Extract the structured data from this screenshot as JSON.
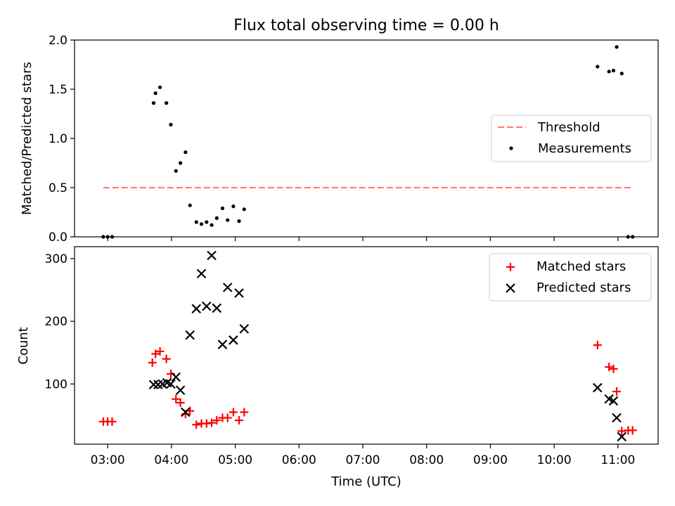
{
  "figure": {
    "title": "Flux total observing time = 0.00 h",
    "xlabel": "Time (UTC)",
    "x_ticks": [
      "03:00",
      "04:00",
      "05:00",
      "06:00",
      "07:00",
      "08:00",
      "09:00",
      "10:00",
      "11:00"
    ]
  },
  "chart_data": [
    {
      "type": "scatter",
      "ylabel": "Matched/Predicted stars",
      "ylim": [
        0,
        2.0
      ],
      "xlim": [
        2.48,
        11.63
      ],
      "y_ticks": [
        "0.0",
        "0.5",
        "1.0",
        "1.5",
        "2.0"
      ],
      "legend_position": "center-right",
      "threshold": {
        "name": "Threshold",
        "y": 0.5,
        "x_range": [
          2.93,
          11.23
        ],
        "color": "#ff7f7f"
      },
      "series": [
        {
          "name": "Measurements",
          "color": "#000000",
          "points": [
            [
              2.93,
              0.0
            ],
            [
              3.0,
              0.0
            ],
            [
              3.07,
              0.0
            ],
            [
              3.72,
              1.36
            ],
            [
              3.75,
              1.46
            ],
            [
              3.82,
              1.52
            ],
            [
              3.92,
              1.36
            ],
            [
              3.99,
              1.14
            ],
            [
              4.07,
              0.67
            ],
            [
              4.14,
              0.75
            ],
            [
              4.22,
              0.86
            ],
            [
              4.29,
              0.32
            ],
            [
              4.39,
              0.15
            ],
            [
              4.47,
              0.13
            ],
            [
              4.55,
              0.15
            ],
            [
              4.63,
              0.12
            ],
            [
              4.71,
              0.19
            ],
            [
              4.8,
              0.29
            ],
            [
              4.88,
              0.17
            ],
            [
              4.97,
              0.31
            ],
            [
              5.06,
              0.16
            ],
            [
              5.14,
              0.28
            ],
            [
              10.68,
              1.73
            ],
            [
              10.86,
              1.68
            ],
            [
              10.93,
              1.69
            ],
            [
              10.98,
              1.93
            ],
            [
              11.06,
              1.66
            ],
            [
              11.16,
              0.0
            ],
            [
              11.23,
              0.0
            ]
          ]
        }
      ]
    },
    {
      "type": "scatter",
      "ylabel": "Count",
      "ylim": [
        4,
        319
      ],
      "xlim": [
        2.48,
        11.63
      ],
      "y_ticks": [
        "100",
        "200",
        "300"
      ],
      "legend_position": "top-right",
      "series": [
        {
          "name": "Matched stars",
          "marker": "plus",
          "color": "#ff0000",
          "points": [
            [
              2.93,
              40
            ],
            [
              3.0,
              40
            ],
            [
              3.07,
              40
            ],
            [
              3.7,
              134
            ],
            [
              3.75,
              148
            ],
            [
              3.82,
              152
            ],
            [
              3.92,
              140
            ],
            [
              3.99,
              116
            ],
            [
              4.07,
              76
            ],
            [
              4.14,
              70
            ],
            [
              4.22,
              52
            ],
            [
              4.29,
              57
            ],
            [
              4.39,
              35
            ],
            [
              4.47,
              37
            ],
            [
              4.55,
              37
            ],
            [
              4.63,
              38
            ],
            [
              4.71,
              42
            ],
            [
              4.8,
              46
            ],
            [
              4.88,
              46
            ],
            [
              4.97,
              55
            ],
            [
              5.06,
              42
            ],
            [
              5.14,
              55
            ],
            [
              10.68,
              162
            ],
            [
              10.86,
              127
            ],
            [
              10.93,
              124
            ],
            [
              10.98,
              88
            ],
            [
              11.06,
              25
            ],
            [
              11.16,
              26
            ],
            [
              11.23,
              26
            ]
          ]
        },
        {
          "name": "Predicted stars",
          "marker": "x",
          "color": "#000000",
          "points": [
            [
              3.72,
              99
            ],
            [
              3.79,
              99
            ],
            [
              3.86,
              100
            ],
            [
              3.93,
              102
            ],
            [
              3.99,
              100
            ],
            [
              4.07,
              111
            ],
            [
              4.14,
              90
            ],
            [
              4.22,
              55
            ],
            [
              4.29,
              178
            ],
            [
              4.39,
              220
            ],
            [
              4.47,
              276
            ],
            [
              4.55,
              224
            ],
            [
              4.63,
              305
            ],
            [
              4.71,
              221
            ],
            [
              4.8,
              163
            ],
            [
              4.88,
              254
            ],
            [
              4.97,
              170
            ],
            [
              5.06,
              245
            ],
            [
              5.14,
              188
            ],
            [
              10.68,
              94
            ],
            [
              10.86,
              76
            ],
            [
              10.93,
              73
            ],
            [
              10.98,
              46
            ],
            [
              11.06,
              16
            ]
          ]
        }
      ]
    }
  ]
}
